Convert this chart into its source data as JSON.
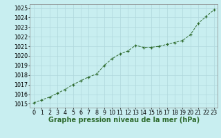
{
  "x": [
    0,
    1,
    2,
    3,
    4,
    5,
    6,
    7,
    8,
    9,
    10,
    11,
    12,
    13,
    14,
    15,
    16,
    17,
    18,
    19,
    20,
    21,
    22,
    23
  ],
  "y": [
    1015.1,
    1015.4,
    1015.7,
    1016.1,
    1016.5,
    1017.0,
    1017.4,
    1017.8,
    1018.1,
    1019.0,
    1019.7,
    1020.2,
    1020.5,
    1021.1,
    1020.9,
    1020.9,
    1021.0,
    1021.2,
    1021.4,
    1021.6,
    1022.2,
    1023.4,
    1024.1,
    1024.8
  ],
  "line_color": "#2d6a2d",
  "marker_color": "#2d6a2d",
  "bg_color": "#c8eef0",
  "grid_color": "#b0d8dc",
  "title": "Graphe pression niveau de la mer (hPa)",
  "ylabel_vals": [
    1015,
    1016,
    1017,
    1018,
    1019,
    1020,
    1021,
    1022,
    1023,
    1024,
    1025
  ],
  "ylim": [
    1014.6,
    1025.4
  ],
  "xlim": [
    -0.5,
    23.5
  ],
  "title_color": "#2d6a2d",
  "title_fontsize": 7.0,
  "tick_fontsize": 5.8
}
